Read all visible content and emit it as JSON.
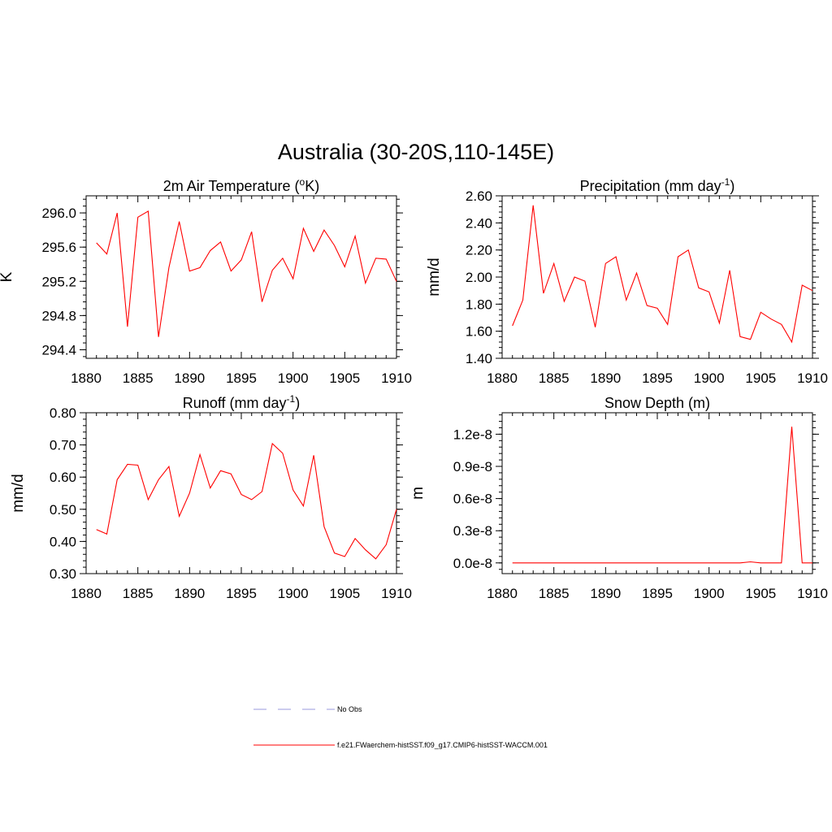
{
  "figure": {
    "title": "Australia (30-20S,110-145E)"
  },
  "colors": {
    "model_line": "#ff0000",
    "obs_line": "#9999dd",
    "axes": "#000000",
    "background": "#ffffff"
  },
  "legend": {
    "placement": "bottom-center",
    "entries": [
      {
        "label": "No Obs",
        "style": "dashed",
        "color": "#9999dd"
      },
      {
        "label": "f.e21.FWaerchem-histSST.f09_g17.CMIP6-histSST-WACCM.001",
        "style": "solid",
        "color": "#ff0000"
      }
    ]
  },
  "chart_data": [
    {
      "type": "line",
      "title": "2m Air Temperature",
      "title_unit": "K",
      "title_prefix": "(",
      "title_super": "o",
      "title_suffix": ")",
      "ylabel": "K",
      "xlim": [
        1880,
        1910
      ],
      "ylim": [
        294.3,
        296.2
      ],
      "xticks": [
        1880,
        1885,
        1890,
        1895,
        1900,
        1905,
        1910
      ],
      "xtick_labels": [
        "1880",
        "1885",
        "1890",
        "1895",
        "1900",
        "1905",
        "1910"
      ],
      "yticks": [
        294.4,
        294.8,
        295.2,
        295.6,
        296.0
      ],
      "ytick_labels": [
        "294.4",
        "294.8",
        "295.2",
        "295.6",
        "296.0"
      ],
      "grid": false,
      "series": [
        {
          "color": "#ff0000",
          "x": [
            1881,
            1882,
            1883,
            1884,
            1885,
            1886,
            1887,
            1888,
            1889,
            1890,
            1891,
            1892,
            1893,
            1894,
            1895,
            1896,
            1897,
            1898,
            1899,
            1900,
            1901,
            1902,
            1903,
            1904,
            1905,
            1906,
            1907,
            1908,
            1909,
            1910
          ],
          "y": [
            295.65,
            295.52,
            296.0,
            294.67,
            295.95,
            296.02,
            294.55,
            295.36,
            295.9,
            295.32,
            295.36,
            295.56,
            295.66,
            295.32,
            295.45,
            295.78,
            294.96,
            295.33,
            295.47,
            295.23,
            295.82,
            295.55,
            295.8,
            295.62,
            295.37,
            295.73,
            295.18,
            295.47,
            295.46,
            295.2
          ]
        }
      ]
    },
    {
      "type": "line",
      "title": "Precipitation",
      "title_prefix": "(mm day",
      "title_super": "-1",
      "title_suffix": ")",
      "ylabel": "mm/d",
      "xlim": [
        1880,
        1910
      ],
      "ylim": [
        1.4,
        2.6
      ],
      "xticks": [
        1880,
        1885,
        1890,
        1895,
        1900,
        1905,
        1910
      ],
      "xtick_labels": [
        "1880",
        "1885",
        "1890",
        "1895",
        "1900",
        "1905",
        "1910"
      ],
      "yticks": [
        1.4,
        1.6,
        1.8,
        2.0,
        2.2,
        2.4,
        2.6
      ],
      "ytick_labels": [
        "1.40",
        "1.60",
        "1.80",
        "2.00",
        "2.20",
        "2.40",
        "2.60"
      ],
      "grid": false,
      "series": [
        {
          "color": "#ff0000",
          "x": [
            1881,
            1882,
            1883,
            1884,
            1885,
            1886,
            1887,
            1888,
            1889,
            1890,
            1891,
            1892,
            1893,
            1894,
            1895,
            1896,
            1897,
            1898,
            1899,
            1900,
            1901,
            1902,
            1903,
            1904,
            1905,
            1906,
            1907,
            1908,
            1909,
            1910
          ],
          "y": [
            1.64,
            1.83,
            2.53,
            1.88,
            2.1,
            1.82,
            2.0,
            1.97,
            1.63,
            2.1,
            2.15,
            1.83,
            2.03,
            1.79,
            1.77,
            1.65,
            2.15,
            2.2,
            1.92,
            1.89,
            1.66,
            2.05,
            1.56,
            1.54,
            1.74,
            1.69,
            1.65,
            1.52,
            1.94,
            1.9
          ]
        }
      ]
    },
    {
      "type": "line",
      "title": "Runoff",
      "title_prefix": "(mm day",
      "title_super": "-1",
      "title_suffix": ")",
      "ylabel": "mm/d",
      "xlim": [
        1880,
        1910
      ],
      "ylim": [
        0.3,
        0.8
      ],
      "xticks": [
        1880,
        1885,
        1890,
        1895,
        1900,
        1905,
        1910
      ],
      "xtick_labels": [
        "1880",
        "1885",
        "1890",
        "1895",
        "1900",
        "1905",
        "1910"
      ],
      "yticks": [
        0.3,
        0.4,
        0.5,
        0.6,
        0.7,
        0.8
      ],
      "ytick_labels": [
        "0.30",
        "0.40",
        "0.50",
        "0.60",
        "0.70",
        "0.80"
      ],
      "grid": false,
      "series": [
        {
          "color": "#ff0000",
          "x": [
            1881,
            1882,
            1883,
            1884,
            1885,
            1886,
            1887,
            1888,
            1889,
            1890,
            1891,
            1892,
            1893,
            1894,
            1895,
            1896,
            1897,
            1898,
            1899,
            1900,
            1901,
            1902,
            1903,
            1904,
            1905,
            1906,
            1907,
            1908,
            1909,
            1910
          ],
          "y": [
            0.437,
            0.423,
            0.592,
            0.64,
            0.637,
            0.53,
            0.592,
            0.633,
            0.478,
            0.55,
            0.67,
            0.566,
            0.62,
            0.61,
            0.546,
            0.53,
            0.555,
            0.704,
            0.674,
            0.56,
            0.51,
            0.668,
            0.446,
            0.364,
            0.353,
            0.409,
            0.374,
            0.346,
            0.39,
            0.5
          ]
        }
      ]
    },
    {
      "type": "line",
      "title": "Snow Depth (m)",
      "ylabel": "m",
      "xlim": [
        1880,
        1910
      ],
      "ylim": [
        -1e-09,
        1.4e-08
      ],
      "xticks": [
        1880,
        1885,
        1890,
        1895,
        1900,
        1905,
        1910
      ],
      "xtick_labels": [
        "1880",
        "1885",
        "1890",
        "1895",
        "1900",
        "1905",
        "1910"
      ],
      "yticks": [
        0.0,
        3e-09,
        6e-09,
        9e-09,
        1.2e-08
      ],
      "ytick_labels": [
        "0.0e-8",
        "0.3e-8",
        "0.6e-8",
        "0.9e-8",
        "1.2e-8"
      ],
      "grid": false,
      "series": [
        {
          "color": "#ff0000",
          "x": [
            1881,
            1882,
            1883,
            1884,
            1885,
            1886,
            1887,
            1888,
            1889,
            1890,
            1891,
            1892,
            1893,
            1894,
            1895,
            1896,
            1897,
            1898,
            1899,
            1900,
            1901,
            1902,
            1903,
            1904,
            1905,
            1906,
            1907,
            1908,
            1909,
            1910
          ],
          "y": [
            0,
            0,
            0,
            0,
            0,
            0,
            0,
            0,
            0,
            0,
            0,
            0,
            0,
            0,
            0,
            0,
            0,
            0,
            0,
            0,
            0,
            0,
            0,
            1e-10,
            0,
            0,
            0,
            1.27e-08,
            0,
            0
          ]
        }
      ]
    }
  ]
}
